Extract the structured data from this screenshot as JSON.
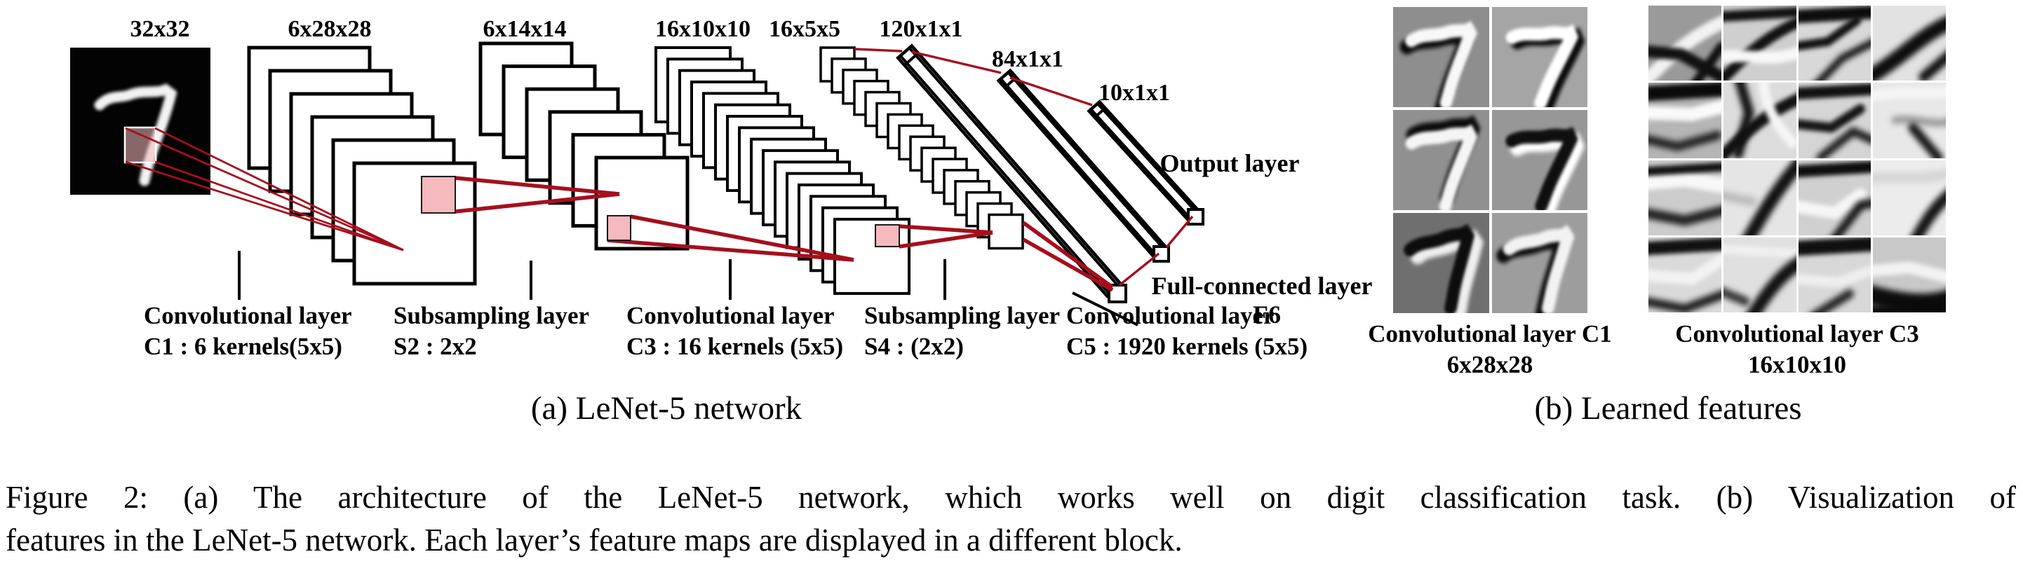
{
  "figure": {
    "panel_a": {
      "subcaption": "(a) LeNet-5 network",
      "dims": {
        "input": "32x32",
        "c1": "6x28x28",
        "s2": "6x14x14",
        "c3": "16x10x10",
        "s4": "16x5x5",
        "c5": "120x1x1",
        "f6": "84x1x1",
        "out": "10x1x1"
      },
      "output_label": "Output layer",
      "fc_label": "Full-connected layer",
      "fc_sublabel": "F6",
      "layers": [
        {
          "line1": "Convolutional layer",
          "line2": "C1 : 6 kernels(5x5)"
        },
        {
          "line1": "Subsampling layer",
          "line2": "S2 : 2x2"
        },
        {
          "line1": "Convolutional layer",
          "line2": "C3 : 16 kernels (5x5)"
        },
        {
          "line1": "Subsampling layer",
          "line2": "S4 : (2x2)"
        },
        {
          "line1": "Convolutional layer",
          "line2": "C5 : 1920 kernels (5x5)"
        }
      ],
      "input_digit": "7",
      "colors": {
        "connection_red": "#a50f1d",
        "highlight_pink": "#f6b9bd"
      }
    },
    "panel_b": {
      "subcaption": "(b) Learned features",
      "blocks": [
        {
          "label_line1": "Convolutional layer C1",
          "label_line2": "6x28x28",
          "grid": "2x3"
        },
        {
          "label_line1": "Convolutional layer C3",
          "label_line2": "16x10x10",
          "grid": "4x4"
        }
      ]
    },
    "caption_line1": "Figure 2: (a) The architecture of the LeNet-5 network, which works well on digit classification task. (b) Visualization of",
    "caption_line2": "features in the LeNet-5 network. Each layer’s feature maps are displayed in a different block."
  }
}
